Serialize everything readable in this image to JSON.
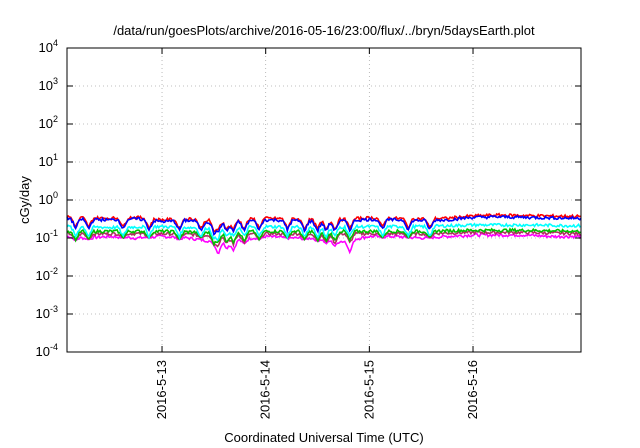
{
  "chart_data": {
    "type": "line",
    "title": "/data/run/goesPlots/archive/2016-05-16/23:00/flux/../bryn/5daysEarth.plot",
    "xlabel": "Coordinated Universal Time (UTC)",
    "ylabel": "cGy/day",
    "yscale": "log",
    "ylim": [
      0.0001,
      10000
    ],
    "xlim": [
      "2016-05-12T02:00",
      "2016-05-17T01:00"
    ],
    "grid": true,
    "legend": "none",
    "x_ticks": [
      {
        "label": "2016-5-13",
        "value": "2016-05-13T00:00"
      },
      {
        "label": "2016-5-14",
        "value": "2016-05-14T00:00"
      },
      {
        "label": "2016-5-15",
        "value": "2016-05-15T00:00"
      },
      {
        "label": "2016-5-16",
        "value": "2016-05-16T00:00"
      }
    ],
    "y_ticks": [
      {
        "base": "10",
        "exp": "4",
        "value": 10000
      },
      {
        "base": "10",
        "exp": "3",
        "value": 1000
      },
      {
        "base": "10",
        "exp": "2",
        "value": 100
      },
      {
        "base": "10",
        "exp": "1",
        "value": 10
      },
      {
        "base": "10",
        "exp": "0",
        "value": 1
      },
      {
        "base": "10",
        "exp": "-1",
        "value": 0.1
      },
      {
        "base": "10",
        "exp": "-2",
        "value": 0.01
      },
      {
        "base": "10",
        "exp": "-3",
        "value": 0.001
      },
      {
        "base": "10",
        "exp": "-4",
        "value": 0.0001
      }
    ],
    "series": [
      {
        "color": "#ff00ff",
        "x": [
          "2016-05-12T02:00",
          "2016-05-12T06:00",
          "2016-05-12T12:00",
          "2016-05-12T18:00",
          "2016-05-13T00:00",
          "2016-05-13T06:00",
          "2016-05-13T12:00",
          "2016-05-13T18:00",
          "2016-05-14T00:00",
          "2016-05-14T06:00",
          "2016-05-14T12:00",
          "2016-05-14T18:00",
          "2016-05-15T00:00",
          "2016-05-15T06:00",
          "2016-05-15T12:00",
          "2016-05-15T18:00",
          "2016-05-16T00:00",
          "2016-05-16T06:00",
          "2016-05-16T12:00",
          "2016-05-16T18:00",
          "2016-05-17T01:00"
        ],
        "y": [
          0.11,
          0.1,
          0.11,
          0.1,
          0.11,
          0.1,
          0.08,
          0.09,
          0.11,
          0.1,
          0.1,
          0.08,
          0.11,
          0.11,
          0.1,
          0.11,
          0.12,
          0.12,
          0.12,
          0.11,
          0.11
        ]
      },
      {
        "color": "#b03060",
        "x": [
          "2016-05-12T02:00",
          "2016-05-12T12:00",
          "2016-05-13T00:00",
          "2016-05-13T12:00",
          "2016-05-14T00:00",
          "2016-05-14T12:00",
          "2016-05-15T00:00",
          "2016-05-15T12:00",
          "2016-05-16T00:00",
          "2016-05-16T12:00",
          "2016-05-17T01:00"
        ],
        "y": [
          0.13,
          0.13,
          0.13,
          0.12,
          0.13,
          0.13,
          0.13,
          0.13,
          0.14,
          0.14,
          0.13
        ]
      },
      {
        "color": "#00c000",
        "x": [
          "2016-05-12T02:00",
          "2016-05-12T12:00",
          "2016-05-13T00:00",
          "2016-05-13T12:00",
          "2016-05-14T00:00",
          "2016-05-14T12:00",
          "2016-05-15T00:00",
          "2016-05-15T12:00",
          "2016-05-16T00:00",
          "2016-05-16T12:00",
          "2016-05-17T01:00"
        ],
        "y": [
          0.15,
          0.15,
          0.15,
          0.14,
          0.15,
          0.15,
          0.15,
          0.15,
          0.16,
          0.16,
          0.15
        ]
      },
      {
        "color": "#00ffff",
        "x": [
          "2016-05-12T02:00",
          "2016-05-12T12:00",
          "2016-05-13T00:00",
          "2016-05-13T12:00",
          "2016-05-14T00:00",
          "2016-05-14T12:00",
          "2016-05-15T00:00",
          "2016-05-15T12:00",
          "2016-05-16T00:00",
          "2016-05-16T12:00",
          "2016-05-17T01:00"
        ],
        "y": [
          0.2,
          0.19,
          0.2,
          0.18,
          0.2,
          0.19,
          0.2,
          0.2,
          0.22,
          0.22,
          0.21
        ]
      },
      {
        "color": "#ff0000",
        "x": [
          "2016-05-12T02:00",
          "2016-05-12T06:00",
          "2016-05-12T12:00",
          "2016-05-12T18:00",
          "2016-05-13T00:00",
          "2016-05-13T06:00",
          "2016-05-13T12:00",
          "2016-05-13T18:00",
          "2016-05-14T00:00",
          "2016-05-14T06:00",
          "2016-05-14T12:00",
          "2016-05-14T18:00",
          "2016-05-15T00:00",
          "2016-05-15T06:00",
          "2016-05-15T12:00",
          "2016-05-15T18:00",
          "2016-05-16T00:00",
          "2016-05-16T06:00",
          "2016-05-16T12:00",
          "2016-05-16T18:00",
          "2016-05-17T01:00"
        ],
        "y": [
          0.36,
          0.34,
          0.33,
          0.35,
          0.3,
          0.32,
          0.29,
          0.3,
          0.33,
          0.32,
          0.3,
          0.31,
          0.34,
          0.33,
          0.32,
          0.33,
          0.38,
          0.4,
          0.39,
          0.38,
          0.37
        ]
      },
      {
        "color": "#0000ff",
        "x": [
          "2016-05-12T02:00",
          "2016-05-12T06:00",
          "2016-05-12T12:00",
          "2016-05-12T18:00",
          "2016-05-13T00:00",
          "2016-05-13T06:00",
          "2016-05-13T12:00",
          "2016-05-13T18:00",
          "2016-05-14T00:00",
          "2016-05-14T06:00",
          "2016-05-14T12:00",
          "2016-05-14T18:00",
          "2016-05-15T00:00",
          "2016-05-15T06:00",
          "2016-05-15T12:00",
          "2016-05-15T18:00",
          "2016-05-16T00:00",
          "2016-05-16T06:00",
          "2016-05-16T12:00",
          "2016-05-16T18:00",
          "2016-05-17T01:00"
        ],
        "y": [
          0.33,
          0.31,
          0.3,
          0.32,
          0.27,
          0.29,
          0.26,
          0.27,
          0.3,
          0.29,
          0.27,
          0.28,
          0.31,
          0.3,
          0.29,
          0.3,
          0.35,
          0.36,
          0.35,
          0.34,
          0.33
        ]
      }
    ],
    "dips": [
      {
        "x": "2016-05-12T04:00",
        "y": 0.085
      },
      {
        "x": "2016-05-12T07:00",
        "y": 0.09
      },
      {
        "x": "2016-05-12T15:00",
        "y": 0.1
      },
      {
        "x": "2016-05-12T21:00",
        "y": 0.1
      },
      {
        "x": "2016-05-13T04:00",
        "y": 0.09
      },
      {
        "x": "2016-05-13T09:00",
        "y": 0.1
      },
      {
        "x": "2016-05-13T12:00",
        "y": 0.07
      },
      {
        "x": "2016-05-13T13:00",
        "y": 0.035
      },
      {
        "x": "2016-05-13T15:00",
        "y": 0.05
      },
      {
        "x": "2016-05-13T16:30",
        "y": 0.045
      },
      {
        "x": "2016-05-13T19:00",
        "y": 0.07
      },
      {
        "x": "2016-05-13T22:30",
        "y": 0.09
      },
      {
        "x": "2016-05-14T05:00",
        "y": 0.1
      },
      {
        "x": "2016-05-14T09:00",
        "y": 0.09
      },
      {
        "x": "2016-05-14T12:00",
        "y": 0.08
      },
      {
        "x": "2016-05-14T14:00",
        "y": 0.07
      },
      {
        "x": "2016-05-14T16:00",
        "y": 0.06
      },
      {
        "x": "2016-05-14T19:30",
        "y": 0.04
      },
      {
        "x": "2016-05-15T03:00",
        "y": 0.1
      },
      {
        "x": "2016-05-15T09:00",
        "y": 0.1
      },
      {
        "x": "2016-05-15T14:00",
        "y": 0.1
      }
    ]
  }
}
